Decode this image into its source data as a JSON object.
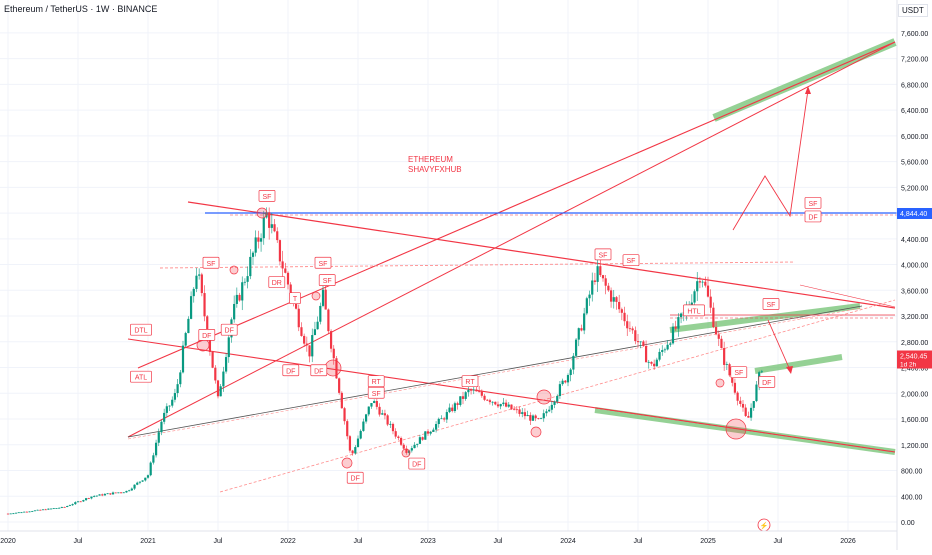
{
  "header": {
    "title": "Ethereum / TetherUS · 1W · BINANCE"
  },
  "currency": "USDT",
  "price_badge": {
    "price": "2,540.45",
    "countdown": "1d 2h",
    "color": "#f23645"
  },
  "level_badge": {
    "price": "4,844.40",
    "color": "#2962ff"
  },
  "chart_data": {
    "type": "candlestick",
    "title": "Ethereum / TetherUS · 1W · BINANCE",
    "yaxis_ticks": [
      "7,600.00",
      "7,200.00",
      "6,800.00",
      "6,400.00",
      "6,000.00",
      "5,600.00",
      "5,200.00",
      "4,800.00",
      "4,400.00",
      "4,000.00",
      "3,600.00",
      "3,200.00",
      "2,800.00",
      "2,400.00",
      "2,000.00",
      "1,600.00",
      "1,200.00",
      "800.00",
      "400.00",
      "0.00"
    ],
    "ylim": [
      0,
      7800
    ],
    "xaxis_ticks": [
      "2020",
      "Jul",
      "2021",
      "Jul",
      "2022",
      "Jul",
      "2023",
      "Jul",
      "2024",
      "Jul",
      "2025",
      "Jul",
      "2026"
    ],
    "colors": {
      "up": "#089981",
      "down": "#f23645",
      "trend": "#f23645",
      "zone": "#5cb85c"
    },
    "price_anchors": [
      {
        "t": 2020.0,
        "p": 130
      },
      {
        "t": 2020.4,
        "p": 230
      },
      {
        "t": 2020.6,
        "p": 400
      },
      {
        "t": 2020.85,
        "p": 480
      },
      {
        "t": 2021.0,
        "p": 730
      },
      {
        "t": 2021.1,
        "p": 1600
      },
      {
        "t": 2021.2,
        "p": 2000
      },
      {
        "t": 2021.35,
        "p": 3950
      },
      {
        "t": 2021.5,
        "p": 1900
      },
      {
        "t": 2021.6,
        "p": 3200
      },
      {
        "t": 2021.85,
        "p": 4800
      },
      {
        "t": 2022.0,
        "p": 3700
      },
      {
        "t": 2022.15,
        "p": 2600
      },
      {
        "t": 2022.25,
        "p": 3500
      },
      {
        "t": 2022.45,
        "p": 1000
      },
      {
        "t": 2022.6,
        "p": 1900
      },
      {
        "t": 2022.85,
        "p": 1100
      },
      {
        "t": 2023.1,
        "p": 1600
      },
      {
        "t": 2023.3,
        "p": 2050
      },
      {
        "t": 2023.5,
        "p": 1850
      },
      {
        "t": 2023.8,
        "p": 1550
      },
      {
        "t": 2024.0,
        "p": 2300
      },
      {
        "t": 2024.2,
        "p": 3900
      },
      {
        "t": 2024.45,
        "p": 3000
      },
      {
        "t": 2024.6,
        "p": 2400
      },
      {
        "t": 2024.85,
        "p": 3300
      },
      {
        "t": 2024.95,
        "p": 3900
      },
      {
        "t": 2025.1,
        "p": 2600
      },
      {
        "t": 2025.28,
        "p": 1550
      },
      {
        "t": 2025.4,
        "p": 2540
      }
    ],
    "annotations": [
      {
        "text": "SF",
        "t": 2021.85,
        "p": 5060,
        "color": "#f23645"
      },
      {
        "text": "SF",
        "t": 2021.45,
        "p": 4020,
        "color": "#f23645"
      },
      {
        "text": "SF",
        "t": 2022.25,
        "p": 4020,
        "color": "#f23645"
      },
      {
        "text": "SF",
        "t": 2022.28,
        "p": 3750,
        "color": "#f23645"
      },
      {
        "text": "DR",
        "t": 2021.92,
        "p": 3720,
        "color": "#f23645"
      },
      {
        "text": "T",
        "t": 2022.05,
        "p": 3470,
        "color": "#f23645"
      },
      {
        "text": "DF",
        "t": 2021.58,
        "p": 2980,
        "color": "#f23645"
      },
      {
        "text": "DF",
        "t": 2021.42,
        "p": 2900,
        "color": "#f23645"
      },
      {
        "text": "DF",
        "t": 2022.02,
        "p": 2350,
        "color": "#f23645"
      },
      {
        "text": "DF",
        "t": 2022.22,
        "p": 2350,
        "color": "#f23645"
      },
      {
        "text": "DTL",
        "t": 2020.95,
        "p": 2980,
        "color": "#f23645"
      },
      {
        "text": "ATL",
        "t": 2020.95,
        "p": 2250,
        "color": "#f23645"
      },
      {
        "text": "RT",
        "t": 2022.63,
        "p": 2180,
        "color": "#f23645"
      },
      {
        "text": "SF",
        "t": 2022.63,
        "p": 2000,
        "color": "#f23645"
      },
      {
        "text": "RT",
        "t": 2023.3,
        "p": 2180,
        "color": "#f23645"
      },
      {
        "text": "DF",
        "t": 2022.48,
        "p": 680,
        "color": "#f23645"
      },
      {
        "text": "DF",
        "t": 2022.92,
        "p": 900,
        "color": "#f23645"
      },
      {
        "text": "SF",
        "t": 2024.25,
        "p": 4150,
        "color": "#f23645"
      },
      {
        "text": "SF",
        "t": 2024.45,
        "p": 4060,
        "color": "#f23645"
      },
      {
        "text": "HTL",
        "t": 2024.9,
        "p": 3280,
        "color": "#f23645"
      },
      {
        "text": "SF",
        "t": 2025.45,
        "p": 3380,
        "color": "#f23645"
      },
      {
        "text": "SF",
        "t": 2025.22,
        "p": 2320,
        "color": "#f23645"
      },
      {
        "text": "DF",
        "t": 2025.42,
        "p": 2170,
        "color": "#f23645"
      },
      {
        "text": "SF",
        "t": 2025.75,
        "p": 4950,
        "color": "#f23645"
      },
      {
        "text": "DF",
        "t": 2025.75,
        "p": 4740,
        "color": "#f23645"
      }
    ],
    "watermark_text": [
      "ETHEREUM",
      "SHAVYFXHUB"
    ]
  }
}
